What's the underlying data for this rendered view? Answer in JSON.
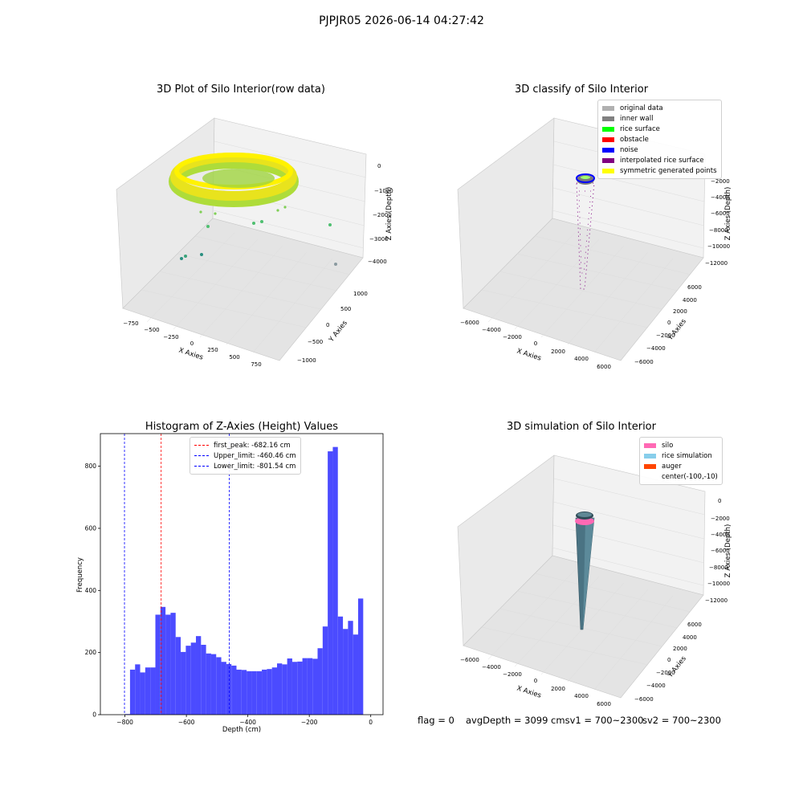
{
  "figure": {
    "suptitle": "PJPJR05 2026-06-14 04:27:42"
  },
  "colors": {
    "histogram_bars": "#4b4bff",
    "first_peak_line": "#ff0000",
    "limit_lines": "#0000ff"
  },
  "chart_data": [
    {
      "type": "scatter3d",
      "title": "3D Plot of Silo Interior(row data)",
      "xlabel": "X Axies",
      "ylabel": "Y Axies",
      "zlabel": "Z Axies (Depth)",
      "xticks": [
        "−750",
        "−500",
        "−250",
        "0",
        "250",
        "500",
        "750"
      ],
      "yticks": [
        "−1000",
        "−500",
        "0",
        "500",
        "1000"
      ],
      "zticks": [
        "0",
        "−1000",
        "−2000",
        "−3000",
        "−4000"
      ],
      "colormap": [
        "#2a8f80",
        "#4fbf70",
        "#a8d93a",
        "#e9e51b",
        "#ffe800"
      ]
    },
    {
      "type": "scatter3d",
      "title": "3D classify of Silo Interior",
      "xlabel": "X Axies",
      "ylabel": "Y Axies",
      "zlabel": "Z Axies (Depth)",
      "xticks": [
        "−6000",
        "−4000",
        "−2000",
        "0",
        "2000",
        "4000",
        "6000"
      ],
      "yticks": [
        "−6000",
        "−4000",
        "−2000",
        "0",
        "2000",
        "4000",
        "6000"
      ],
      "zticks": [
        "−2000",
        "−4000",
        "−6000",
        "−8000",
        "−10000",
        "−12000"
      ],
      "legend": [
        {
          "label": "original data",
          "color": "#b0b0b0"
        },
        {
          "label": "inner wall",
          "color": "#808080"
        },
        {
          "label": "rice surface",
          "color": "#00ff00"
        },
        {
          "label": "obstacle",
          "color": "#ff0000"
        },
        {
          "label": "noise",
          "color": "#0000ff"
        },
        {
          "label": "interpolated rice surface",
          "color": "#800080"
        },
        {
          "label": "symmetric generated points",
          "color": "#ffff00"
        }
      ]
    },
    {
      "type": "bar",
      "title": "Histogram of Z-Axies (Height) Values",
      "xlabel": "Depth (cm)",
      "ylabel": "Frequency",
      "xlim": [
        -880,
        40
      ],
      "ylim": [
        0,
        905
      ],
      "xticks": [
        -800,
        -600,
        -400,
        -200,
        0
      ],
      "xtick_labels": [
        "−800",
        "−600",
        "−400",
        "−200",
        "0"
      ],
      "yticks": [
        0,
        200,
        400,
        600,
        800
      ],
      "yticks_labels": [
        "0",
        "200",
        "400",
        "600",
        "800"
      ],
      "bin_start": -800,
      "bin_width": 16.5,
      "values": [
        2,
        145,
        162,
        136,
        152,
        152,
        322,
        347,
        322,
        328,
        250,
        202,
        222,
        232,
        253,
        225,
        197,
        195,
        185,
        170,
        163,
        158,
        145,
        144,
        140,
        140,
        140,
        145,
        147,
        152,
        165,
        162,
        181,
        170,
        171,
        182,
        182,
        180,
        214,
        284,
        848,
        862,
        316,
        276,
        302,
        258,
        374
      ],
      "vlines": [
        {
          "label": "first_peak: -682.16 cm",
          "x": -682.16,
          "color": "#ff0000"
        },
        {
          "label": "Upper_limit: -460.46 cm",
          "x": -460.46,
          "color": "#0000ff"
        },
        {
          "label": "Lower_limit: -801.54 cm",
          "x": -801.54,
          "color": "#0000ff"
        }
      ]
    },
    {
      "type": "surface3d",
      "title": "3D simulation of Silo Interior",
      "xlabel": "X Axies",
      "ylabel": "Y Axies",
      "zlabel": "Z Axies (Depth)",
      "xticks": [
        "−6000",
        "−4000",
        "−2000",
        "0",
        "2000",
        "4000",
        "6000"
      ],
      "yticks": [
        "−6000",
        "−4000",
        "−2000",
        "0",
        "2000",
        "4000",
        "6000"
      ],
      "zticks": [
        "0",
        "−2000",
        "−4000",
        "−6000",
        "−8000",
        "−10000",
        "−12000"
      ],
      "legend": [
        {
          "label": "silo",
          "color": "#ff69b4"
        },
        {
          "label": "rice simulation",
          "color": "#87ceeb"
        },
        {
          "label": "auger",
          "color": "#ff4500"
        },
        {
          "label": "center(-100,-10)",
          "color": ""
        }
      ]
    }
  ],
  "status_bar": {
    "flag": "flag = 0",
    "avg_depth": "avgDepth = 3099 cmsv1 = 700~2300",
    "sv2": "sv2 = 700~2300"
  }
}
